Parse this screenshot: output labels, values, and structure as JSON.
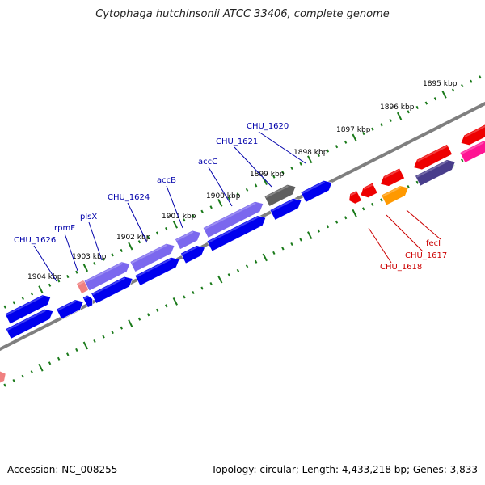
{
  "title": "Cytophaga hutchinsonii ATCC 33406, complete genome",
  "footer": {
    "accession": "Accession: NC_008255",
    "stats": "Topology: circular; Length: 4,433,218 bp; Genes: 3,833"
  },
  "colors": {
    "backbone": "#7f7f7f",
    "tick": "#1a7a1a",
    "label_blue": "#0000aa",
    "label_red": "#cc0000",
    "gene_blue": "#0000ee",
    "gene_purple": "#7b68ee",
    "gene_gray": "#606060",
    "gene_red": "#ee0000",
    "gene_orange": "#ff9900",
    "gene_pink": "#ff1493",
    "gene_navy": "#483d8b",
    "gene_salmon": "#f08080"
  },
  "ticks": [
    {
      "label": "1895 kbp"
    },
    {
      "label": "1896 kbp"
    },
    {
      "label": "1897 kbp"
    },
    {
      "label": "1898 kbp"
    },
    {
      "label": "1899 kbp"
    },
    {
      "label": "1900 kbp"
    },
    {
      "label": "1901 kbp"
    },
    {
      "label": "1902 kbp"
    },
    {
      "label": "1903 kbp"
    },
    {
      "label": "1904 kbp"
    }
  ],
  "labels": [
    {
      "text": "CHU_1620",
      "color": "blue"
    },
    {
      "text": "CHU_1621",
      "color": "blue"
    },
    {
      "text": "accC",
      "color": "blue"
    },
    {
      "text": "accB",
      "color": "blue"
    },
    {
      "text": "CHU_1624",
      "color": "blue"
    },
    {
      "text": "plsX",
      "color": "blue"
    },
    {
      "text": "rpmF",
      "color": "blue"
    },
    {
      "text": "CHU_1626",
      "color": "blue"
    },
    {
      "text": "fecI",
      "color": "red"
    },
    {
      "text": "CHU_1617",
      "color": "red"
    },
    {
      "text": "CHU_1618",
      "color": "red"
    }
  ]
}
